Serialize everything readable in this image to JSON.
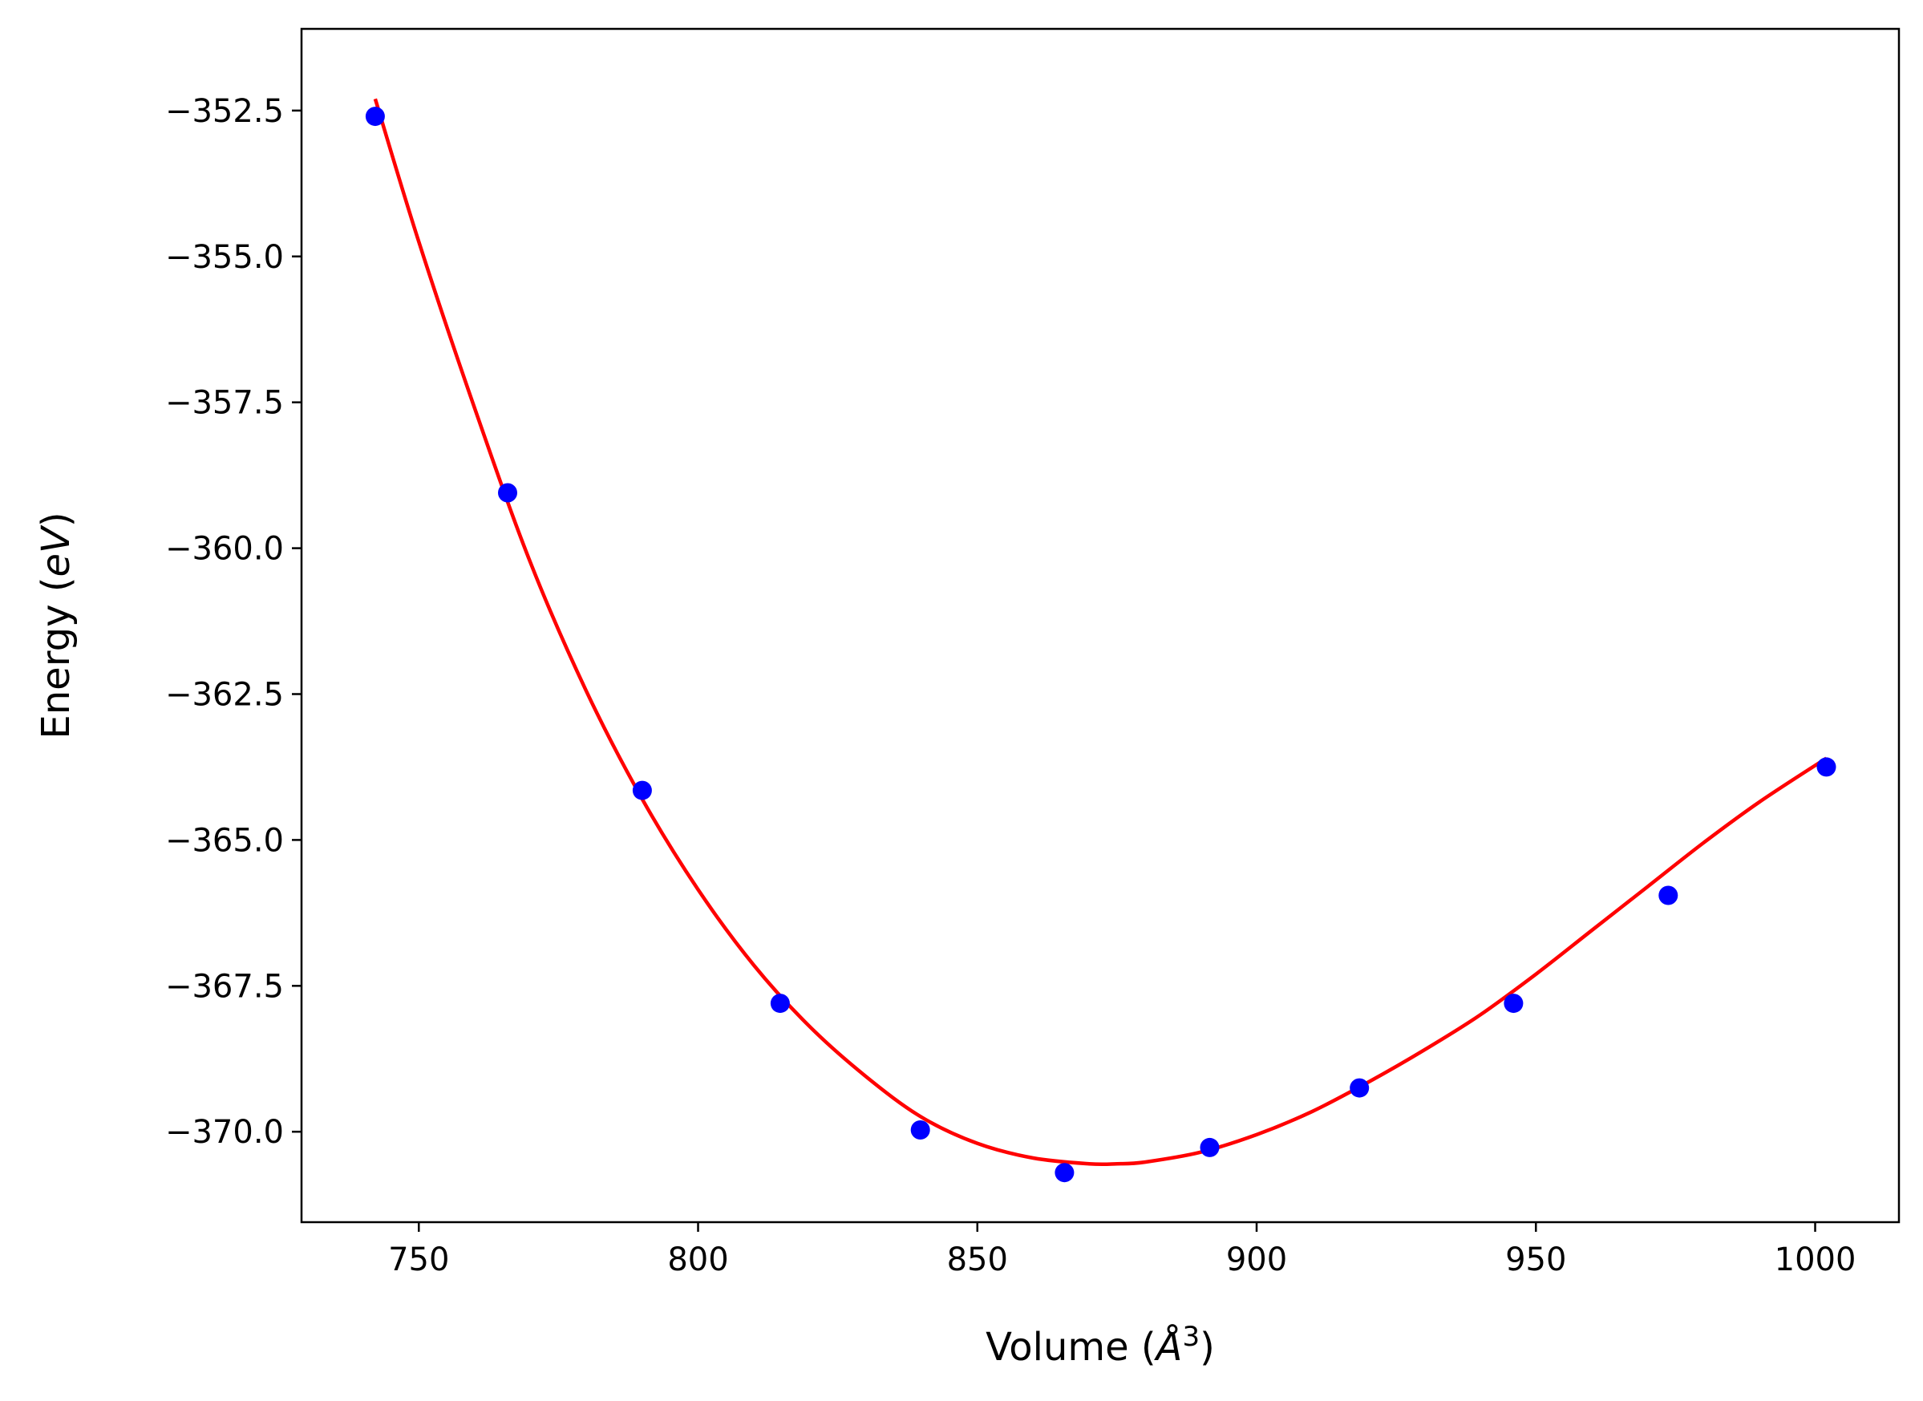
{
  "chart_data": {
    "type": "scatter",
    "title": "",
    "xlabel": {
      "prefix": "Volume (",
      "unit_symbol": "Å",
      "unit_power": "3",
      "suffix": ")"
    },
    "ylabel": {
      "prefix": "Energy (",
      "unit": "eV",
      "suffix": ")"
    },
    "xlim": [
      729,
      1015
    ],
    "ylim": [
      -371.55,
      -351.1
    ],
    "xticks": [
      750,
      800,
      850,
      900,
      950,
      1000
    ],
    "yticks": [
      -352.5,
      -355.0,
      -357.5,
      -360.0,
      -362.5,
      -365.0,
      -367.5,
      -370.0
    ],
    "xtick_labels": [
      "750",
      "800",
      "850",
      "900",
      "950",
      "1000"
    ],
    "ytick_labels": [
      "−352.5",
      "−355.0",
      "−357.5",
      "−360.0",
      "−362.5",
      "−365.0",
      "−367.5",
      "−370.0"
    ],
    "grid": false,
    "legend": "none",
    "series": [
      {
        "kind": "points",
        "color": "#0000ff",
        "x": [
          742.2,
          765.9,
          790.0,
          814.7,
          839.8,
          865.6,
          891.6,
          918.4,
          946.0,
          973.7,
          1002.0
        ],
        "y": [
          -352.6,
          -359.05,
          -364.15,
          -367.8,
          -369.97,
          -370.7,
          -370.27,
          -369.25,
          -367.8,
          -365.95,
          -363.75
        ]
      },
      {
        "kind": "fit-curve",
        "color": "#ff0000",
        "x": [
          742.2,
          750,
          760,
          770,
          780,
          790,
          800,
          810,
          820,
          830,
          840,
          850,
          860,
          870,
          875,
          880,
          890,
          900,
          910,
          920,
          930,
          940,
          950,
          960,
          970,
          980,
          990,
          1002.0
        ],
        "y": [
          -352.3,
          -354.75,
          -357.6,
          -360.25,
          -362.45,
          -364.3,
          -365.85,
          -367.15,
          -368.2,
          -369.05,
          -369.75,
          -370.2,
          -370.45,
          -370.55,
          -370.55,
          -370.52,
          -370.35,
          -370.05,
          -369.65,
          -369.15,
          -368.6,
          -368.0,
          -367.3,
          -366.55,
          -365.8,
          -365.05,
          -364.35,
          -363.6
        ]
      }
    ]
  }
}
